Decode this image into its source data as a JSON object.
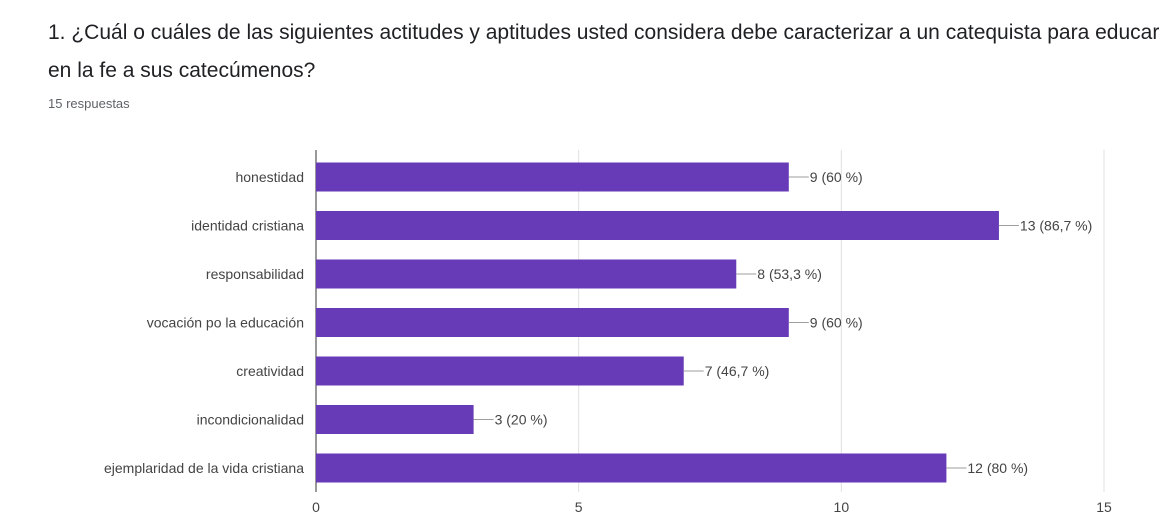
{
  "question": {
    "title": "1. ¿Cuál o cuáles de las siguientes actitudes y aptitudes usted considera debe caracterizar a un catequista para educar en la fe a sus catecúmenos?",
    "responses": "15 respuestas"
  },
  "colors": {
    "bar": "#673ab7",
    "grid": "#e0e0e0",
    "axis": "#333333",
    "leader": "#9e9e9e"
  },
  "chart_data": {
    "type": "bar",
    "orientation": "horizontal",
    "categories": [
      "honestidad",
      "identidad cristiana",
      "responsabilidad",
      "vocación po la educación",
      "creatividad",
      "incondicionalidad",
      "ejemplaridad de la vida cristiana"
    ],
    "values": [
      9,
      13,
      8,
      9,
      7,
      3,
      12
    ],
    "data_labels": [
      "9 (60 %)",
      "13 (86,7 %)",
      "8 (53,3 %)",
      "9 (60 %)",
      "7 (46,7 %)",
      "3 (20 %)",
      "12 (80 %)"
    ],
    "xlim": [
      0,
      15
    ],
    "xticks": [
      0,
      5,
      10,
      15
    ],
    "xtick_labels": [
      "0",
      "5",
      "10",
      "15"
    ],
    "grid": true,
    "title": "",
    "xlabel": "",
    "ylabel": ""
  }
}
